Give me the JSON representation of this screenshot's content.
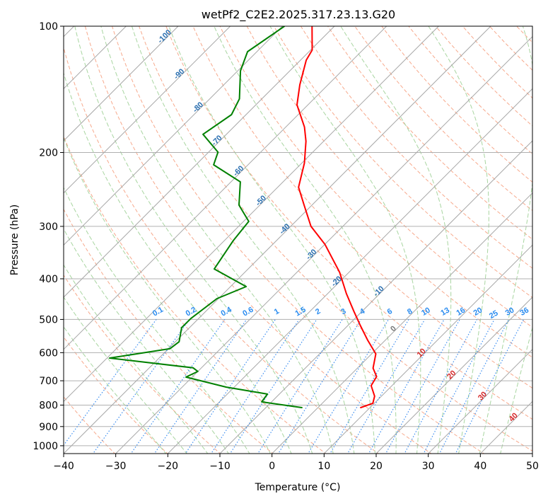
{
  "chart_data": {
    "type": "line",
    "subtype": "skew-t log-p",
    "title": "wetPf2_C2E2.2025.317.23.13.G20",
    "xlabel": "Temperature (°C)",
    "ylabel": "Pressure (hPa)",
    "xlim": [
      -40,
      50
    ],
    "ylim": [
      1050,
      100
    ],
    "x_ticks": [
      "−40",
      "−30",
      "−20",
      "−10",
      "0",
      "10",
      "20",
      "30",
      "40",
      "50"
    ],
    "x_tick_values": [
      -40,
      -30,
      -20,
      -10,
      0,
      10,
      20,
      30,
      40,
      50
    ],
    "y_ticks": [
      "100",
      "200",
      "300",
      "400",
      "500",
      "600",
      "700",
      "800",
      "900",
      "1000"
    ],
    "y_tick_values": [
      100,
      200,
      300,
      400,
      500,
      600,
      700,
      800,
      900,
      1000
    ],
    "grid": true,
    "isotherm_labels": [
      "-100",
      "-90",
      "-80",
      "-70",
      "-60",
      "-50",
      "-40",
      "-30",
      "-20",
      "-10",
      "0",
      "10",
      "20",
      "30",
      "40"
    ],
    "isotherm_label_values": [
      -100,
      -90,
      -80,
      -70,
      -60,
      -50,
      -40,
      -30,
      -20,
      -10,
      0,
      10,
      20,
      30,
      40
    ],
    "mixing_ratio_labels": [
      "0.1",
      "0.2",
      "0.4",
      "0.6",
      "1",
      "1.5",
      "2",
      "3",
      "4",
      "6",
      "8",
      "10",
      "13",
      "16",
      "20",
      "25",
      "30",
      "36"
    ],
    "mixing_ratio_values": [
      0.1,
      0.2,
      0.4,
      0.6,
      1,
      1.5,
      2,
      3,
      4,
      6,
      8,
      10,
      13,
      16,
      20,
      25,
      30,
      36
    ],
    "series": [
      {
        "name": "temperature",
        "color": "#ff0000",
        "pressure": [
          811,
          792,
          762,
          719,
          684,
          653,
          604,
          559,
          517,
          478,
          434,
          386,
          331,
          300,
          267,
          242,
          212,
          188,
          174,
          154,
          138,
          120.5,
          114,
          100
        ],
        "temperature": [
          8.2,
          9.7,
          8.7,
          6.0,
          5.3,
          3.0,
          0.8,
          -3.5,
          -7.6,
          -11.6,
          -16.4,
          -21.8,
          -30.0,
          -36.1,
          -41.5,
          -46.0,
          -49.5,
          -53.4,
          -56.4,
          -62.1,
          -65.4,
          -68.9,
          -69.7,
          -74.3
        ]
      },
      {
        "name": "dewpoint",
        "color": "#008000",
        "pressure": [
          811,
          786,
          753,
          725,
          686,
          665,
          652,
          618,
          587,
          565,
          523,
          497,
          446,
          417.5,
          379,
          324,
          292,
          267,
          235,
          214,
          199.6,
          181,
          162.5,
          149,
          127.7,
          115,
          100
        ],
        "temperature": [
          -3.1,
          -11.9,
          -12.3,
          -21.5,
          -31.2,
          -30.0,
          -31.6,
          -49.5,
          -39.7,
          -39.3,
          -41.5,
          -41.5,
          -40.3,
          -37.0,
          -46.5,
          -48.3,
          -49.0,
          -54.0,
          -58.2,
          -66.6,
          -68.2,
          -74.5,
          -72.8,
          -74.3,
          -79.5,
          -81.8,
          -79.6
        ]
      }
    ],
    "colors": {
      "isotherm": "#a8a8a8",
      "isobar": "#b0b0b0",
      "dry_adiabat": "#f7a98c",
      "moist_adiabat": "#a8d5a0",
      "mixing_ratio": "#3d8ef0",
      "label_negative": "#2a6fb0",
      "label_zero": "#777777",
      "label_positive": "#d62728"
    }
  }
}
